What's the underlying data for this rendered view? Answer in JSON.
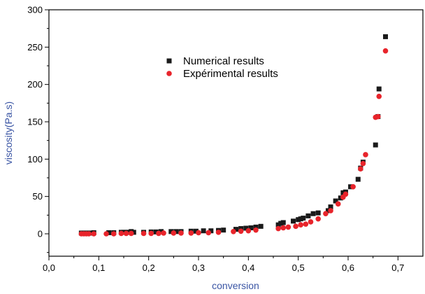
{
  "chart_data": {
    "type": "scatter",
    "xlabel": "conversion",
    "ylabel": "viscosity(Pa.s)",
    "xlim": [
      0.0,
      0.75
    ],
    "ylim": [
      -30,
      300
    ],
    "xticks": [
      {
        "value": 0.0,
        "label": "0,0"
      },
      {
        "value": 0.1,
        "label": "0,1"
      },
      {
        "value": 0.2,
        "label": "0,2"
      },
      {
        "value": 0.3,
        "label": "0,3"
      },
      {
        "value": 0.4,
        "label": "0,4"
      },
      {
        "value": 0.5,
        "label": "0,5"
      },
      {
        "value": 0.6,
        "label": "0,6"
      },
      {
        "value": 0.7,
        "label": "0,7"
      }
    ],
    "yticks": [
      {
        "value": 0,
        "label": "0"
      },
      {
        "value": 50,
        "label": "50"
      },
      {
        "value": 100,
        "label": "100"
      },
      {
        "value": 150,
        "label": "150"
      },
      {
        "value": 200,
        "label": "200"
      },
      {
        "value": 250,
        "label": "250"
      },
      {
        "value": 300,
        "label": "300"
      }
    ],
    "grid": false,
    "legend_position": "top-center",
    "axis_title_color": "#3a55a4",
    "series": [
      {
        "name": "Numerical results",
        "marker": "square",
        "color": "#1a1a1a",
        "points": [
          [
            0.065,
            1
          ],
          [
            0.07,
            1
          ],
          [
            0.075,
            1
          ],
          [
            0.08,
            1
          ],
          [
            0.085,
            1
          ],
          [
            0.09,
            1.5
          ],
          [
            0.12,
            1.5
          ],
          [
            0.13,
            1.5
          ],
          [
            0.145,
            2
          ],
          [
            0.15,
            2
          ],
          [
            0.155,
            2
          ],
          [
            0.16,
            2
          ],
          [
            0.165,
            3
          ],
          [
            0.17,
            2
          ],
          [
            0.19,
            2
          ],
          [
            0.205,
            2.5
          ],
          [
            0.215,
            2.5
          ],
          [
            0.225,
            3
          ],
          [
            0.245,
            3
          ],
          [
            0.255,
            3
          ],
          [
            0.265,
            3
          ],
          [
            0.285,
            3.5
          ],
          [
            0.295,
            3.5
          ],
          [
            0.31,
            4
          ],
          [
            0.325,
            4
          ],
          [
            0.34,
            4.5
          ],
          [
            0.35,
            5
          ],
          [
            0.375,
            6
          ],
          [
            0.385,
            7
          ],
          [
            0.395,
            7.5
          ],
          [
            0.405,
            8
          ],
          [
            0.415,
            9
          ],
          [
            0.425,
            10
          ],
          [
            0.46,
            12
          ],
          [
            0.465,
            14
          ],
          [
            0.47,
            15
          ],
          [
            0.49,
            17
          ],
          [
            0.5,
            19
          ],
          [
            0.505,
            20
          ],
          [
            0.51,
            21
          ],
          [
            0.52,
            24
          ],
          [
            0.53,
            27
          ],
          [
            0.54,
            28
          ],
          [
            0.56,
            31
          ],
          [
            0.565,
            36
          ],
          [
            0.575,
            44
          ],
          [
            0.585,
            48
          ],
          [
            0.59,
            55
          ],
          [
            0.595,
            56
          ],
          [
            0.605,
            63
          ],
          [
            0.62,
            73
          ],
          [
            0.625,
            88
          ],
          [
            0.63,
            96
          ],
          [
            0.655,
            119
          ],
          [
            0.66,
            157
          ],
          [
            0.662,
            194
          ],
          [
            0.675,
            264
          ]
        ]
      },
      {
        "name": "Expérimental results",
        "marker": "circle",
        "color": "#e8242b",
        "points": [
          [
            0.065,
            0
          ],
          [
            0.07,
            0
          ],
          [
            0.075,
            0
          ],
          [
            0.08,
            0
          ],
          [
            0.09,
            0
          ],
          [
            0.115,
            0
          ],
          [
            0.13,
            0
          ],
          [
            0.145,
            0.5
          ],
          [
            0.155,
            0.5
          ],
          [
            0.165,
            0.5
          ],
          [
            0.19,
            0.5
          ],
          [
            0.205,
            0.5
          ],
          [
            0.22,
            0.5
          ],
          [
            0.23,
            1
          ],
          [
            0.25,
            1
          ],
          [
            0.265,
            1
          ],
          [
            0.285,
            1
          ],
          [
            0.3,
            1.5
          ],
          [
            0.32,
            1.5
          ],
          [
            0.34,
            2
          ],
          [
            0.37,
            3
          ],
          [
            0.385,
            3.5
          ],
          [
            0.4,
            4
          ],
          [
            0.415,
            5
          ],
          [
            0.46,
            7
          ],
          [
            0.47,
            8
          ],
          [
            0.48,
            9
          ],
          [
            0.495,
            10
          ],
          [
            0.505,
            12
          ],
          [
            0.515,
            13
          ],
          [
            0.525,
            16
          ],
          [
            0.54,
            20
          ],
          [
            0.555,
            27
          ],
          [
            0.565,
            31
          ],
          [
            0.58,
            40
          ],
          [
            0.59,
            49
          ],
          [
            0.595,
            53
          ],
          [
            0.61,
            63
          ],
          [
            0.625,
            87
          ],
          [
            0.63,
            94
          ],
          [
            0.635,
            106
          ],
          [
            0.655,
            156
          ],
          [
            0.66,
            157
          ],
          [
            0.662,
            184
          ],
          [
            0.675,
            245
          ]
        ]
      }
    ]
  }
}
